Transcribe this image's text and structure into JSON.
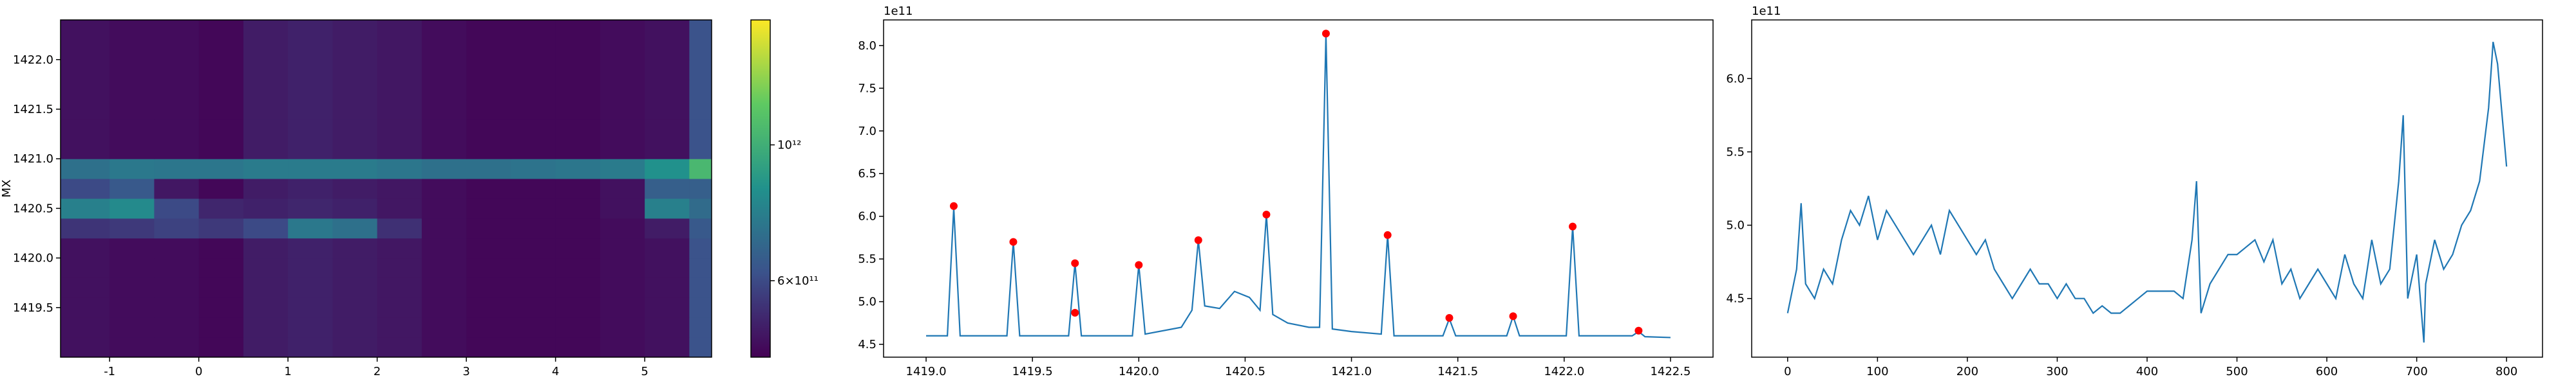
{
  "chart_data": [
    {
      "type": "heatmap",
      "y_label": "MX",
      "xlim": [
        -1.55,
        5.75
      ],
      "ylim": [
        1419.0,
        1422.4
      ],
      "xticks": [
        -1,
        0,
        1,
        2,
        3,
        4,
        5
      ],
      "yticks": [
        1419.5,
        {
          "value": 1420.0,
          "label": "1420.0"
        },
        1420.5,
        {
          "value": 1421.0,
          "label": "1421.0"
        },
        1421.5,
        {
          "value": 1422.0,
          "label": "1422.0"
        }
      ],
      "x_edges": [
        -1.55,
        -1,
        -0.5,
        0,
        0.5,
        1,
        1.5,
        2,
        2.5,
        3,
        3.5,
        4,
        4.5,
        5,
        5.5,
        5.75
      ],
      "y_edges": [
        1419.0,
        1419.2,
        1419.4,
        1419.6,
        1419.8,
        1420.0,
        1420.2,
        1420.4,
        1420.6,
        1420.8,
        1421.0,
        1421.2,
        1421.4,
        1421.6,
        1421.8,
        1422.0,
        1422.2,
        1422.4
      ],
      "z": [
        [
          480000000000.0,
          470000000000.0,
          470000000000.0,
          460000000000.0,
          500000000000.0,
          510000000000.0,
          500000000000.0,
          490000000000.0,
          470000000000.0,
          460000000000.0,
          460000000000.0,
          460000000000.0,
          470000000000.0,
          480000000000.0,
          620000000000.0
        ],
        [
          480000000000.0,
          470000000000.0,
          470000000000.0,
          460000000000.0,
          500000000000.0,
          510000000000.0,
          500000000000.0,
          490000000000.0,
          470000000000.0,
          460000000000.0,
          460000000000.0,
          460000000000.0,
          470000000000.0,
          480000000000.0,
          620000000000.0
        ],
        [
          480000000000.0,
          470000000000.0,
          470000000000.0,
          460000000000.0,
          500000000000.0,
          510000000000.0,
          500000000000.0,
          490000000000.0,
          470000000000.0,
          460000000000.0,
          460000000000.0,
          460000000000.0,
          470000000000.0,
          480000000000.0,
          620000000000.0
        ],
        [
          480000000000.0,
          470000000000.0,
          470000000000.0,
          460000000000.0,
          500000000000.0,
          510000000000.0,
          500000000000.0,
          490000000000.0,
          470000000000.0,
          460000000000.0,
          460000000000.0,
          460000000000.0,
          470000000000.0,
          480000000000.0,
          620000000000.0
        ],
        [
          480000000000.0,
          470000000000.0,
          470000000000.0,
          460000000000.0,
          500000000000.0,
          510000000000.0,
          500000000000.0,
          490000000000.0,
          470000000000.0,
          460000000000.0,
          460000000000.0,
          460000000000.0,
          470000000000.0,
          480000000000.0,
          620000000000.0
        ],
        [
          480000000000.0,
          470000000000.0,
          470000000000.0,
          460000000000.0,
          500000000000.0,
          510000000000.0,
          500000000000.0,
          490000000000.0,
          470000000000.0,
          460000000000.0,
          460000000000.0,
          460000000000.0,
          470000000000.0,
          480000000000.0,
          620000000000.0
        ],
        [
          550000000000.0,
          560000000000.0,
          580000000000.0,
          560000000000.0,
          600000000000.0,
          750000000000.0,
          720000000000.0,
          540000000000.0,
          470000000000.0,
          460000000000.0,
          460000000000.0,
          460000000000.0,
          470000000000.0,
          500000000000.0,
          640000000000.0
        ],
        [
          780000000000.0,
          820000000000.0,
          600000000000.0,
          520000000000.0,
          510000000000.0,
          520000000000.0,
          510000000000.0,
          490000000000.0,
          470000000000.0,
          460000000000.0,
          460000000000.0,
          460000000000.0,
          480000000000.0,
          780000000000.0,
          700000000000.0
        ],
        [
          600000000000.0,
          640000000000.0,
          490000000000.0,
          460000000000.0,
          500000000000.0,
          510000000000.0,
          500000000000.0,
          490000000000.0,
          470000000000.0,
          460000000000.0,
          460000000000.0,
          460000000000.0,
          480000000000.0,
          660000000000.0,
          660000000000.0
        ],
        [
          720000000000.0,
          750000000000.0,
          740000000000.0,
          740000000000.0,
          760000000000.0,
          760000000000.0,
          760000000000.0,
          740000000000.0,
          720000000000.0,
          720000000000.0,
          730000000000.0,
          740000000000.0,
          760000000000.0,
          850000000000.0,
          1050000000000.0
        ],
        [
          480000000000.0,
          470000000000.0,
          470000000000.0,
          460000000000.0,
          500000000000.0,
          510000000000.0,
          500000000000.0,
          490000000000.0,
          470000000000.0,
          460000000000.0,
          460000000000.0,
          460000000000.0,
          470000000000.0,
          480000000000.0,
          620000000000.0
        ],
        [
          480000000000.0,
          470000000000.0,
          470000000000.0,
          460000000000.0,
          500000000000.0,
          510000000000.0,
          500000000000.0,
          490000000000.0,
          470000000000.0,
          460000000000.0,
          460000000000.0,
          460000000000.0,
          470000000000.0,
          480000000000.0,
          620000000000.0
        ],
        [
          480000000000.0,
          470000000000.0,
          470000000000.0,
          460000000000.0,
          500000000000.0,
          510000000000.0,
          500000000000.0,
          490000000000.0,
          470000000000.0,
          460000000000.0,
          460000000000.0,
          460000000000.0,
          470000000000.0,
          480000000000.0,
          620000000000.0
        ],
        [
          480000000000.0,
          470000000000.0,
          470000000000.0,
          460000000000.0,
          500000000000.0,
          510000000000.0,
          500000000000.0,
          490000000000.0,
          470000000000.0,
          460000000000.0,
          460000000000.0,
          460000000000.0,
          470000000000.0,
          480000000000.0,
          620000000000.0
        ],
        [
          480000000000.0,
          470000000000.0,
          470000000000.0,
          460000000000.0,
          500000000000.0,
          510000000000.0,
          500000000000.0,
          490000000000.0,
          470000000000.0,
          460000000000.0,
          460000000000.0,
          460000000000.0,
          470000000000.0,
          480000000000.0,
          620000000000.0
        ],
        [
          480000000000.0,
          470000000000.0,
          470000000000.0,
          460000000000.0,
          500000000000.0,
          510000000000.0,
          500000000000.0,
          490000000000.0,
          470000000000.0,
          460000000000.0,
          460000000000.0,
          460000000000.0,
          470000000000.0,
          480000000000.0,
          620000000000.0
        ],
        [
          480000000000.0,
          470000000000.0,
          470000000000.0,
          460000000000.0,
          500000000000.0,
          510000000000.0,
          500000000000.0,
          490000000000.0,
          470000000000.0,
          460000000000.0,
          460000000000.0,
          460000000000.0,
          470000000000.0,
          480000000000.0,
          620000000000.0
        ]
      ],
      "colorbar": {
        "scale": "log",
        "lim": [
          450000000000.0,
          1600000000000.0
        ],
        "colormap": "viridis",
        "ticks": [
          {
            "value": 1000000000000.0,
            "label": "10¹²"
          },
          {
            "value": 600000000000.0,
            "label": "6×10¹¹"
          }
        ]
      }
    },
    {
      "type": "line",
      "offset_label": "1e11",
      "xlim": [
        1418.8,
        1422.7
      ],
      "ylim": [
        4.35,
        8.3
      ],
      "xticks": [
        {
          "value": 1419.0,
          "label": "1419.0"
        },
        1419.5,
        {
          "value": 1420.0,
          "label": "1420.0"
        },
        1420.5,
        {
          "value": 1421.0,
          "label": "1421.0"
        },
        1421.5,
        {
          "value": 1422.0,
          "label": "1422.0"
        },
        1422.5
      ],
      "yticks": [
        4.5,
        {
          "value": 5.0,
          "label": "5.0"
        },
        5.5,
        {
          "value": 6.0,
          "label": "6.0"
        },
        6.5,
        {
          "value": 7.0,
          "label": "7.0"
        },
        7.5,
        {
          "value": 8.0,
          "label": "8.0"
        }
      ],
      "series": [
        {
          "color": "#1f77b4",
          "x": [
            1419.0,
            1419.1,
            1419.13,
            1419.16,
            1419.38,
            1419.41,
            1419.44,
            1419.67,
            1419.7,
            1419.73,
            1419.97,
            1420.0,
            1420.03,
            1420.2,
            1420.25,
            1420.28,
            1420.31,
            1420.38,
            1420.45,
            1420.52,
            1420.57,
            1420.6,
            1420.63,
            1420.7,
            1420.8,
            1420.85,
            1420.88,
            1420.91,
            1421.0,
            1421.14,
            1421.17,
            1421.2,
            1421.43,
            1421.46,
            1421.49,
            1421.73,
            1421.76,
            1421.79,
            1422.01,
            1422.04,
            1422.07,
            1422.32,
            1422.35,
            1422.38,
            1422.5
          ],
          "values": [
            4.6,
            4.6,
            6.1,
            4.6,
            4.6,
            5.7,
            4.6,
            4.6,
            5.45,
            4.6,
            4.6,
            5.43,
            4.62,
            4.7,
            4.9,
            5.72,
            4.95,
            4.92,
            5.12,
            5.05,
            4.9,
            6.02,
            4.85,
            4.75,
            4.7,
            4.7,
            8.13,
            4.68,
            4.65,
            4.62,
            5.78,
            4.6,
            4.6,
            4.8,
            4.6,
            4.6,
            4.83,
            4.6,
            4.6,
            5.88,
            4.6,
            4.6,
            4.65,
            4.59,
            4.58
          ]
        }
      ],
      "points": {
        "color": "#ff0000",
        "x": [
          1419.13,
          1419.41,
          1419.7,
          1419.7,
          1420.0,
          1420.28,
          1420.6,
          1420.88,
          1421.17,
          1421.46,
          1421.76,
          1422.04,
          1422.35
        ],
        "values": [
          6.12,
          5.7,
          5.45,
          4.87,
          5.43,
          5.72,
          6.02,
          8.14,
          5.78,
          4.81,
          4.83,
          5.88,
          4.66
        ]
      }
    },
    {
      "type": "line",
      "offset_label": "1e11",
      "xlim": [
        -40,
        840
      ],
      "ylim": [
        4.1,
        6.4
      ],
      "xticks": [
        0,
        100,
        200,
        300,
        400,
        500,
        600,
        700,
        800
      ],
      "yticks": [
        4.5,
        {
          "value": 5.0,
          "label": "5.0"
        },
        5.5,
        {
          "value": 6.0,
          "label": "6.0"
        }
      ],
      "series": [
        {
          "color": "#1f77b4",
          "x": [
            0,
            10,
            15,
            20,
            30,
            40,
            50,
            60,
            70,
            80,
            90,
            100,
            110,
            120,
            130,
            140,
            150,
            160,
            170,
            180,
            190,
            200,
            210,
            220,
            230,
            240,
            250,
            260,
            270,
            280,
            290,
            300,
            310,
            320,
            330,
            340,
            350,
            360,
            370,
            380,
            390,
            400,
            410,
            420,
            430,
            440,
            450,
            455,
            460,
            470,
            480,
            490,
            500,
            510,
            520,
            530,
            540,
            550,
            560,
            570,
            580,
            590,
            600,
            610,
            620,
            630,
            640,
            650,
            660,
            670,
            680,
            685,
            690,
            700,
            708,
            710,
            720,
            730,
            740,
            750,
            760,
            770,
            780,
            785,
            790,
            800
          ],
          "values": [
            4.4,
            4.7,
            5.15,
            4.6,
            4.5,
            4.7,
            4.6,
            4.9,
            5.1,
            5.0,
            5.2,
            4.9,
            5.1,
            5.0,
            4.9,
            4.8,
            4.9,
            5.0,
            4.8,
            5.1,
            5.0,
            4.9,
            4.8,
            4.9,
            4.7,
            4.6,
            4.5,
            4.6,
            4.7,
            4.6,
            4.6,
            4.5,
            4.6,
            4.5,
            4.5,
            4.4,
            4.45,
            4.4,
            4.4,
            4.45,
            4.5,
            4.55,
            4.55,
            4.55,
            4.55,
            4.5,
            4.9,
            5.3,
            4.4,
            4.6,
            4.7,
            4.8,
            4.8,
            4.85,
            4.9,
            4.75,
            4.9,
            4.6,
            4.7,
            4.5,
            4.6,
            4.7,
            4.6,
            4.5,
            4.8,
            4.6,
            4.5,
            4.9,
            4.6,
            4.7,
            5.3,
            5.75,
            4.5,
            4.8,
            4.2,
            4.6,
            4.9,
            4.7,
            4.8,
            5.0,
            5.1,
            5.3,
            5.8,
            6.25,
            6.1,
            5.4
          ]
        }
      ]
    }
  ]
}
